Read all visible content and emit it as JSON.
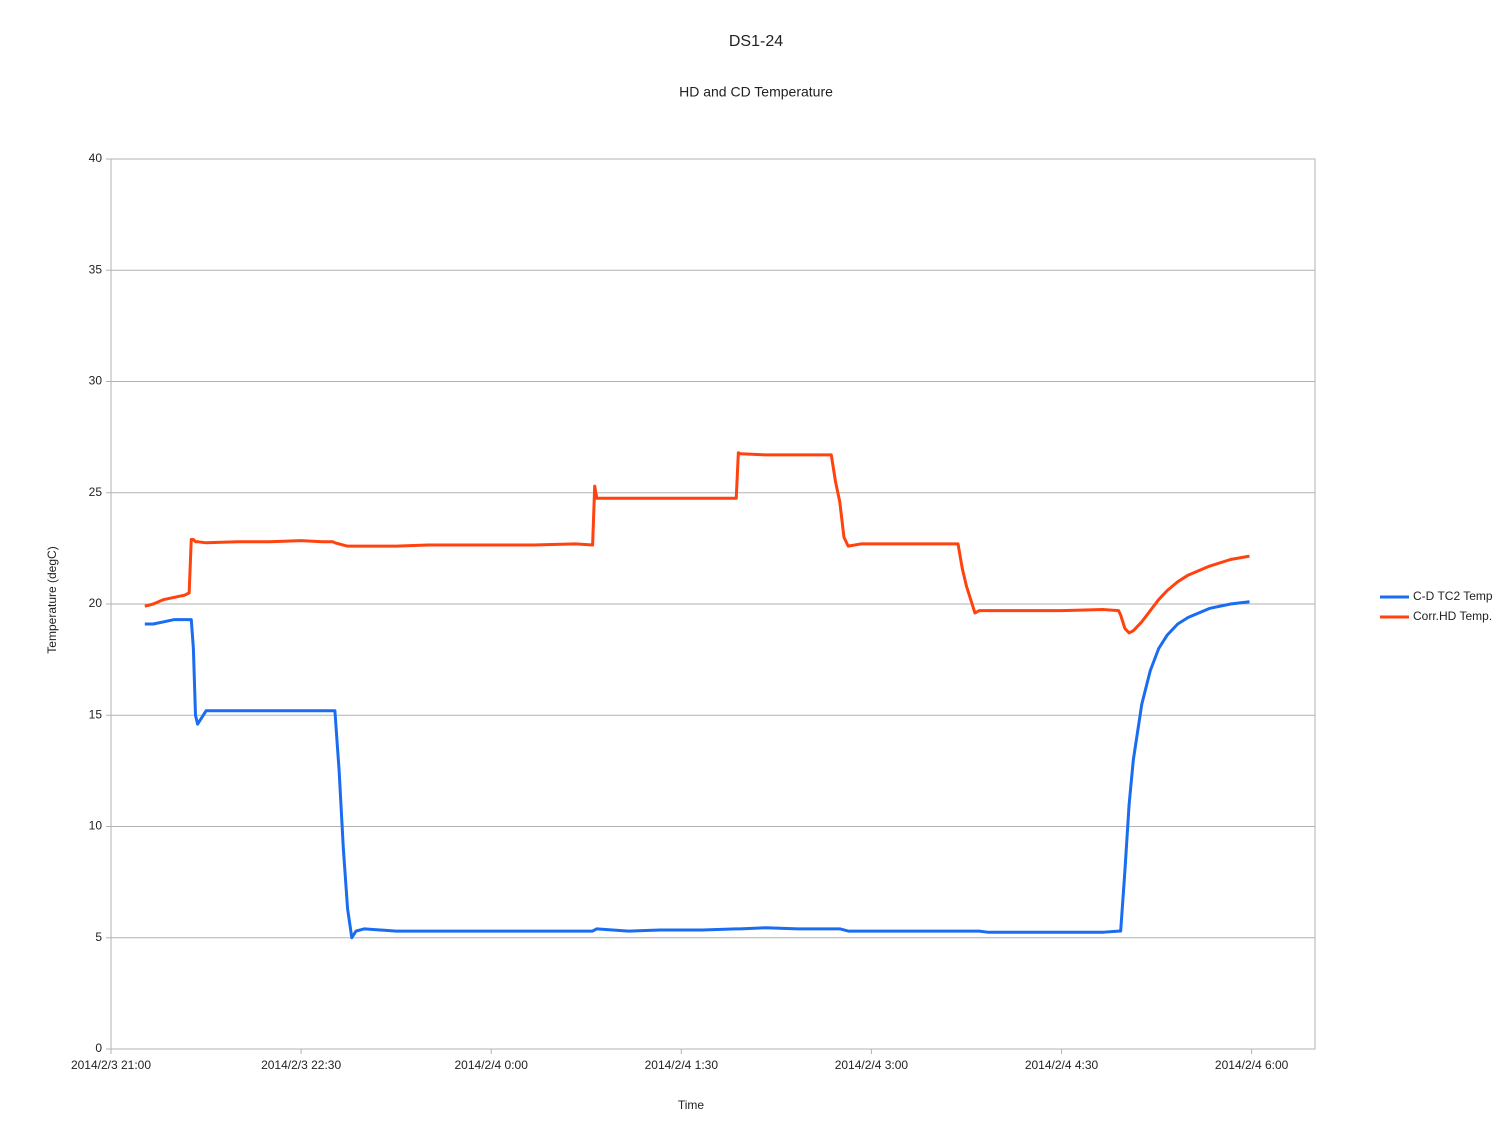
{
  "chart_data": {
    "type": "line",
    "title": "DS1-24",
    "subtitle": "HD and CD Temperature",
    "x_label": "Time",
    "y_label": "Temperature (degC)",
    "x": [
      "2014/2/3 21:16",
      "2014/2/3 21:20",
      "2014/2/3 21:25",
      "2014/2/3 21:30",
      "2014/2/3 21:35",
      "2014/2/3 21:37",
      "2014/2/3 21:38",
      "2014/2/3 21:39",
      "2014/2/3 21:40",
      "2014/2/3 21:41",
      "2014/2/3 21:45",
      "2014/2/3 22:00",
      "2014/2/3 22:15",
      "2014/2/3 22:30",
      "2014/2/3 22:40",
      "2014/2/3 22:45",
      "2014/2/3 22:46",
      "2014/2/3 22:48",
      "2014/2/3 22:50",
      "2014/2/3 22:52",
      "2014/2/3 22:54",
      "2014/2/3 22:56",
      "2014/2/3 23:00",
      "2014/2/3 23:15",
      "2014/2/3 23:30",
      "2014/2/3 23:45",
      "2014/2/4 0:00",
      "2014/2/4 0:20",
      "2014/2/4 0:40",
      "2014/2/4 0:48",
      "2014/2/4 0:49",
      "2014/2/4 0:50",
      "2014/2/4 1:05",
      "2014/2/4 1:20",
      "2014/2/4 1:40",
      "2014/2/4 1:56",
      "2014/2/4 1:57",
      "2014/2/4 1:58",
      "2014/2/4 2:10",
      "2014/2/4 2:25",
      "2014/2/4 2:40",
      "2014/2/4 2:41",
      "2014/2/4 2:43",
      "2014/2/4 2:45",
      "2014/2/4 2:47",
      "2014/2/4 2:49",
      "2014/2/4 2:55",
      "2014/2/4 3:10",
      "2014/2/4 3:25",
      "2014/2/4 3:40",
      "2014/2/4 3:41",
      "2014/2/4 3:43",
      "2014/2/4 3:45",
      "2014/2/4 3:47",
      "2014/2/4 3:49",
      "2014/2/4 3:51",
      "2014/2/4 3:55",
      "2014/2/4 4:10",
      "2014/2/4 4:30",
      "2014/2/4 4:50",
      "2014/2/4 4:57",
      "2014/2/4 4:58",
      "2014/2/4 5:00",
      "2014/2/4 5:02",
      "2014/2/4 5:04",
      "2014/2/4 5:08",
      "2014/2/4 5:12",
      "2014/2/4 5:16",
      "2014/2/4 5:20",
      "2014/2/4 5:25",
      "2014/2/4 5:30",
      "2014/2/4 5:40",
      "2014/2/4 5:50",
      "2014/2/4 5:59"
    ],
    "series": [
      {
        "name": "C-D TC2 Temp",
        "color": "#1a6cf0",
        "values": [
          19.1,
          19.1,
          19.2,
          19.3,
          19.3,
          19.3,
          19.3,
          18.0,
          15.0,
          14.6,
          15.2,
          15.2,
          15.2,
          15.2,
          15.2,
          15.2,
          15.2,
          12.5,
          9.0,
          6.3,
          5.0,
          5.3,
          5.4,
          5.3,
          5.3,
          5.3,
          5.3,
          5.3,
          5.3,
          5.3,
          5.35,
          5.4,
          5.3,
          5.35,
          5.35,
          5.4,
          5.4,
          5.4,
          5.45,
          5.4,
          5.4,
          5.4,
          5.4,
          5.4,
          5.35,
          5.3,
          5.3,
          5.3,
          5.3,
          5.3,
          5.3,
          5.3,
          5.3,
          5.3,
          5.3,
          5.3,
          5.25,
          5.25,
          5.25,
          5.25,
          5.3,
          5.3,
          8.0,
          11.0,
          13.0,
          15.5,
          17.0,
          18.0,
          18.6,
          19.1,
          19.4,
          19.8,
          20.0,
          20.1
        ]
      },
      {
        "name": "Corr.HD Temp.",
        "color": "#ff420e",
        "values": [
          19.9,
          20.0,
          20.2,
          20.3,
          20.4,
          20.5,
          22.9,
          22.9,
          22.8,
          22.8,
          22.75,
          22.8,
          22.8,
          22.85,
          22.8,
          22.8,
          22.75,
          22.7,
          22.65,
          22.6,
          22.6,
          22.6,
          22.6,
          22.6,
          22.65,
          22.65,
          22.65,
          22.65,
          22.7,
          22.65,
          25.3,
          24.75,
          24.75,
          24.75,
          24.75,
          24.75,
          26.8,
          26.75,
          26.7,
          26.7,
          26.7,
          26.7,
          25.5,
          24.6,
          23.0,
          22.6,
          22.7,
          22.7,
          22.7,
          22.7,
          22.7,
          21.6,
          20.8,
          20.2,
          19.6,
          19.7,
          19.7,
          19.7,
          19.7,
          19.75,
          19.7,
          19.5,
          18.9,
          18.7,
          18.8,
          19.2,
          19.7,
          20.2,
          20.6,
          21.0,
          21.3,
          21.7,
          22.0,
          22.15
        ]
      }
    ],
    "xlim": [
      "2014/2/3 21:00",
      "2014/2/4 6:30"
    ],
    "xticks": [
      "2014/2/3 21:00",
      "2014/2/3 22:30",
      "2014/2/4 0:00",
      "2014/2/4 1:30",
      "2014/2/4 3:00",
      "2014/2/4 4:30",
      "2014/2/4 6:00"
    ],
    "ylim": [
      0,
      40
    ],
    "yticks": [
      0,
      5,
      10,
      15,
      20,
      25,
      30,
      35,
      40
    ],
    "grid": true,
    "legend": "right"
  }
}
